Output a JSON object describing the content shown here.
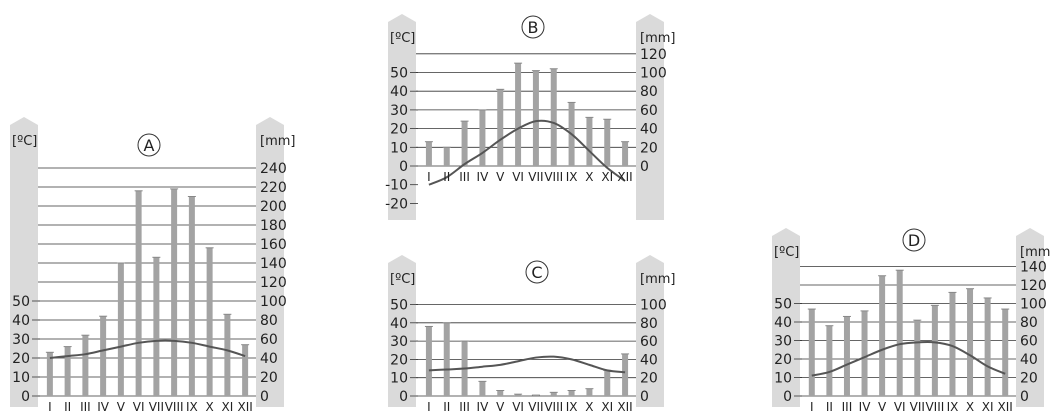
{
  "colors": {
    "bar": "#a3a3a3",
    "line": "#555555",
    "grid": "#333333",
    "panel": "#dadada",
    "text": "#222222"
  },
  "chart_data": [
    {
      "id": "A",
      "type": "bar",
      "title": "A",
      "ylabel": "[ºC]",
      "y2label": "[mm]",
      "categories": [
        "I",
        "II",
        "III",
        "IV",
        "V",
        "VI",
        "VII",
        "VIII",
        "IX",
        "X",
        "XI",
        "XII"
      ],
      "temp_ticks": [
        0,
        10,
        20,
        30,
        40,
        50
      ],
      "precip_ticks": [
        0,
        20,
        40,
        60,
        80,
        100,
        120,
        140,
        160,
        180,
        200,
        220,
        240
      ],
      "series": [
        {
          "kind": "precipitation",
          "axis": "right",
          "values": [
            46,
            52,
            64,
            84,
            140,
            216,
            146,
            218,
            210,
            156,
            86,
            54
          ]
        },
        {
          "kind": "temperature",
          "axis": "left",
          "values": [
            20,
            21,
            22,
            24,
            26,
            28,
            29,
            29,
            28,
            26,
            24,
            21
          ]
        }
      ]
    },
    {
      "id": "B",
      "type": "bar",
      "title": "B",
      "ylabel": "[ºC]",
      "y2label": "[mm]",
      "categories": [
        "I",
        "II",
        "III",
        "IV",
        "V",
        "VI",
        "VII",
        "VIII",
        "IX",
        "X",
        "XI",
        "XII"
      ],
      "temp_ticks": [
        -20,
        -10,
        0,
        10,
        20,
        30,
        40,
        50
      ],
      "precip_ticks": [
        0,
        20,
        40,
        60,
        80,
        100,
        120
      ],
      "series": [
        {
          "kind": "precipitation",
          "axis": "right",
          "values": [
            26,
            20,
            48,
            60,
            82,
            110,
            102,
            104,
            68,
            52,
            50,
            26
          ]
        },
        {
          "kind": "temperature",
          "axis": "left",
          "values": [
            -10,
            -6,
            1,
            7,
            14,
            20,
            24,
            23,
            17,
            8,
            -1,
            -8
          ]
        }
      ]
    },
    {
      "id": "C",
      "type": "bar",
      "title": "C",
      "ylabel": "[ºC]",
      "y2label": "[mm]",
      "categories": [
        "I",
        "II",
        "III",
        "IV",
        "V",
        "VI",
        "VII",
        "VIII",
        "IX",
        "X",
        "XI",
        "XII"
      ],
      "temp_ticks": [
        0,
        10,
        20,
        30,
        40,
        50
      ],
      "precip_ticks": [
        0,
        20,
        40,
        60,
        80,
        100
      ],
      "series": [
        {
          "kind": "precipitation",
          "axis": "right",
          "values": [
            76,
            80,
            60,
            16,
            6,
            2,
            1,
            4,
            6,
            8,
            28,
            46
          ]
        },
        {
          "kind": "temperature",
          "axis": "left",
          "values": [
            14,
            14.5,
            15,
            16,
            17,
            19,
            21,
            21.5,
            20,
            17,
            14,
            13
          ]
        }
      ]
    },
    {
      "id": "D",
      "type": "bar",
      "title": "D",
      "ylabel": "[ºC]",
      "y2label": "[mm",
      "categories": [
        "I",
        "II",
        "III",
        "IV",
        "V",
        "VI",
        "VII",
        "VIII",
        "IX",
        "X",
        "XI",
        "XII"
      ],
      "temp_ticks": [
        0,
        10,
        20,
        30,
        40,
        50
      ],
      "precip_ticks": [
        0,
        20,
        40,
        60,
        80,
        100,
        120,
        140
      ],
      "series": [
        {
          "kind": "precipitation",
          "axis": "right",
          "values": [
            94,
            76,
            86,
            92,
            130,
            136,
            82,
            98,
            112,
            116,
            106,
            94
          ]
        },
        {
          "kind": "temperature",
          "axis": "left",
          "values": [
            11,
            13,
            17,
            21,
            25,
            28,
            29,
            29,
            27,
            22,
            16,
            12
          ]
        }
      ]
    }
  ]
}
